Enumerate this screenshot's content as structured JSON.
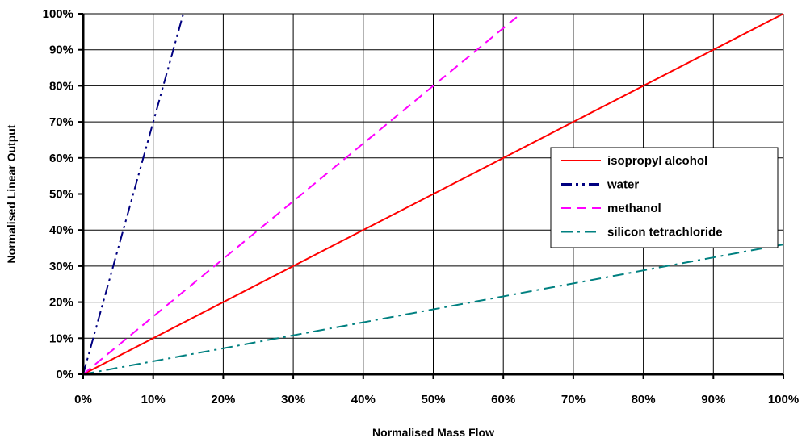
{
  "chart_data": {
    "type": "line",
    "title": "",
    "xlabel": "Normalised Mass Flow",
    "ylabel": "Normalised Linear Output",
    "xlim": [
      0,
      100
    ],
    "ylim": [
      0,
      100
    ],
    "x_ticks": [
      "0%",
      "10%",
      "20%",
      "30%",
      "40%",
      "50%",
      "60%",
      "70%",
      "80%",
      "90%",
      "100%"
    ],
    "y_ticks": [
      "0%",
      "10%",
      "20%",
      "30%",
      "40%",
      "50%",
      "60%",
      "70%",
      "80%",
      "90%",
      "100%"
    ],
    "grid": true,
    "legend_position": "right",
    "series": [
      {
        "name": "isopropyl alcohol",
        "color": "#ff0000",
        "style": "solid",
        "x": [
          0,
          100
        ],
        "y": [
          0,
          100
        ]
      },
      {
        "name": "water",
        "color": "#000080",
        "style": "dash-dot-dot",
        "x": [
          0,
          14.3
        ],
        "y": [
          0,
          100
        ]
      },
      {
        "name": "methanol",
        "color": "#ff00ff",
        "style": "dashed",
        "x": [
          0,
          62.5
        ],
        "y": [
          0,
          100
        ]
      },
      {
        "name": "silicon tetrachloride",
        "color": "#008080",
        "style": "dash-dot",
        "x": [
          0,
          100
        ],
        "y": [
          0,
          36
        ]
      }
    ]
  }
}
